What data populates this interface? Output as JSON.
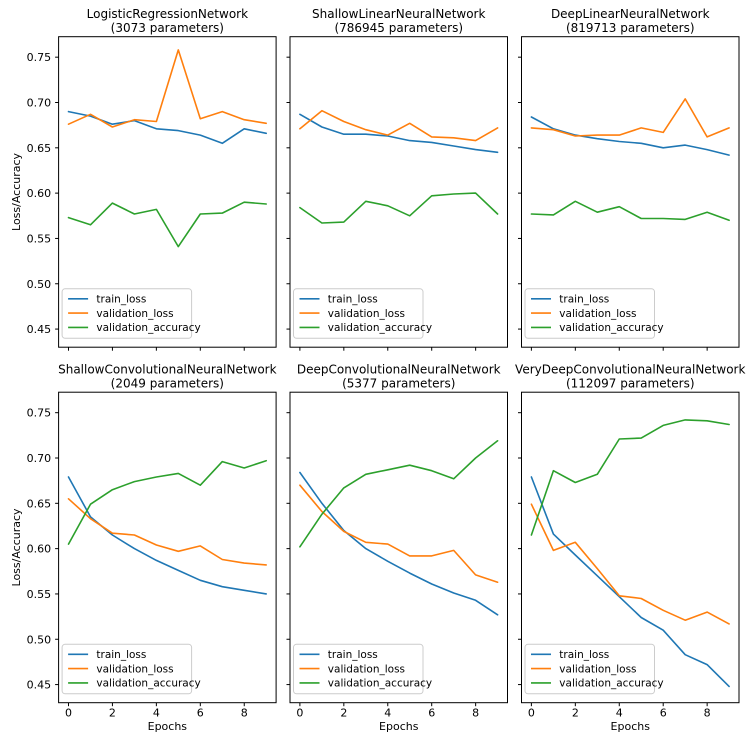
{
  "figure": {
    "background": "#ffffff"
  },
  "chart_data": {
    "type": "line",
    "grid": {
      "rows": 2,
      "cols": 3
    },
    "x": [
      0,
      1,
      2,
      3,
      4,
      5,
      6,
      7,
      8,
      9
    ],
    "xlabel": "Epochs",
    "ylabel": "Loss/Accuracy",
    "xlim": [
      -0.45,
      9.45
    ],
    "ylim": [
      0.43,
      0.7726
    ],
    "xticks": {
      "values": [
        0,
        2,
        4,
        6,
        8
      ],
      "labels": [
        "0",
        "2",
        "4",
        "6",
        "8"
      ]
    },
    "yticks": {
      "values": [
        0.45,
        0.5,
        0.55,
        0.6,
        0.65,
        0.7,
        0.75
      ],
      "labels": [
        "0.45",
        "0.50",
        "0.55",
        "0.60",
        "0.65",
        "0.70",
        "0.75"
      ]
    },
    "grid_lines": false,
    "legend": {
      "position": "lower left",
      "entries": [
        "train_loss",
        "validation_loss",
        "validation_accuracy"
      ]
    },
    "colors": {
      "train_loss": "#1f77b4",
      "validation_loss": "#ff7f0e",
      "validation_accuracy": "#2ca02c"
    },
    "subplots": [
      {
        "title": "LogisticRegressionNetwork",
        "subtitle": "(3073 parameters)",
        "series": [
          {
            "name": "train_loss",
            "values": [
              0.69,
              0.685,
              0.676,
              0.68,
              0.671,
              0.669,
              0.664,
              0.655,
              0.671,
              0.666
            ]
          },
          {
            "name": "validation_loss",
            "values": [
              0.676,
              0.687,
              0.673,
              0.681,
              0.679,
              0.758,
              0.682,
              0.69,
              0.681,
              0.677
            ]
          },
          {
            "name": "validation_accuracy",
            "values": [
              0.573,
              0.565,
              0.589,
              0.577,
              0.582,
              0.541,
              0.577,
              0.578,
              0.59,
              0.588
            ]
          }
        ]
      },
      {
        "title": "ShallowLinearNeuralNetwork",
        "subtitle": "(786945 parameters)",
        "series": [
          {
            "name": "train_loss",
            "values": [
              0.687,
              0.673,
              0.665,
              0.665,
              0.663,
              0.658,
              0.656,
              0.652,
              0.648,
              0.645
            ]
          },
          {
            "name": "validation_loss",
            "values": [
              0.671,
              0.691,
              0.679,
              0.67,
              0.664,
              0.677,
              0.662,
              0.661,
              0.658,
              0.672
            ]
          },
          {
            "name": "validation_accuracy",
            "values": [
              0.584,
              0.567,
              0.568,
              0.591,
              0.586,
              0.575,
              0.597,
              0.599,
              0.6,
              0.577
            ]
          }
        ]
      },
      {
        "title": "DeepLinearNeuralNetwork",
        "subtitle": "(819713 parameters)",
        "series": [
          {
            "name": "train_loss",
            "values": [
              0.684,
              0.671,
              0.664,
              0.66,
              0.657,
              0.655,
              0.65,
              0.653,
              0.648,
              0.642
            ]
          },
          {
            "name": "validation_loss",
            "values": [
              0.672,
              0.67,
              0.663,
              0.664,
              0.664,
              0.672,
              0.667,
              0.704,
              0.662,
              0.672
            ]
          },
          {
            "name": "validation_accuracy",
            "values": [
              0.577,
              0.576,
              0.591,
              0.579,
              0.585,
              0.572,
              0.572,
              0.571,
              0.579,
              0.57
            ]
          }
        ]
      },
      {
        "title": "ShallowConvolutionalNeuralNetwork",
        "subtitle": "(2049 parameters)",
        "series": [
          {
            "name": "train_loss",
            "values": [
              0.679,
              0.635,
              0.615,
              0.6,
              0.587,
              0.576,
              0.565,
              0.558,
              0.554,
              0.55
            ]
          },
          {
            "name": "validation_loss",
            "values": [
              0.655,
              0.633,
              0.617,
              0.615,
              0.604,
              0.597,
              0.603,
              0.588,
              0.584,
              0.582
            ]
          },
          {
            "name": "validation_accuracy",
            "values": [
              0.605,
              0.649,
              0.665,
              0.674,
              0.679,
              0.683,
              0.67,
              0.696,
              0.689,
              0.697
            ]
          }
        ]
      },
      {
        "title": "DeepConvolutionalNeuralNetwork",
        "subtitle": "(5377 parameters)",
        "series": [
          {
            "name": "train_loss",
            "values": [
              0.684,
              0.65,
              0.62,
              0.6,
              0.586,
              0.573,
              0.561,
              0.551,
              0.543,
              0.527
            ]
          },
          {
            "name": "validation_loss",
            "values": [
              0.67,
              0.641,
              0.619,
              0.607,
              0.605,
              0.592,
              0.592,
              0.598,
              0.571,
              0.563
            ]
          },
          {
            "name": "validation_accuracy",
            "values": [
              0.602,
              0.638,
              0.667,
              0.682,
              0.687,
              0.692,
              0.686,
              0.677,
              0.7,
              0.719
            ]
          }
        ]
      },
      {
        "title": "VeryDeepConvolutionalNeuralNetwork",
        "subtitle": "(112097 parameters)",
        "series": [
          {
            "name": "train_loss",
            "values": [
              0.679,
              0.616,
              0.593,
              0.57,
              0.547,
              0.524,
              0.51,
              0.483,
              0.472,
              0.448
            ]
          },
          {
            "name": "validation_loss",
            "values": [
              0.649,
              0.598,
              0.607,
              0.578,
              0.548,
              0.545,
              0.532,
              0.521,
              0.53,
              0.517
            ]
          },
          {
            "name": "validation_accuracy",
            "values": [
              0.615,
              0.686,
              0.673,
              0.682,
              0.721,
              0.722,
              0.736,
              0.742,
              0.741,
              0.737
            ]
          }
        ]
      }
    ]
  }
}
